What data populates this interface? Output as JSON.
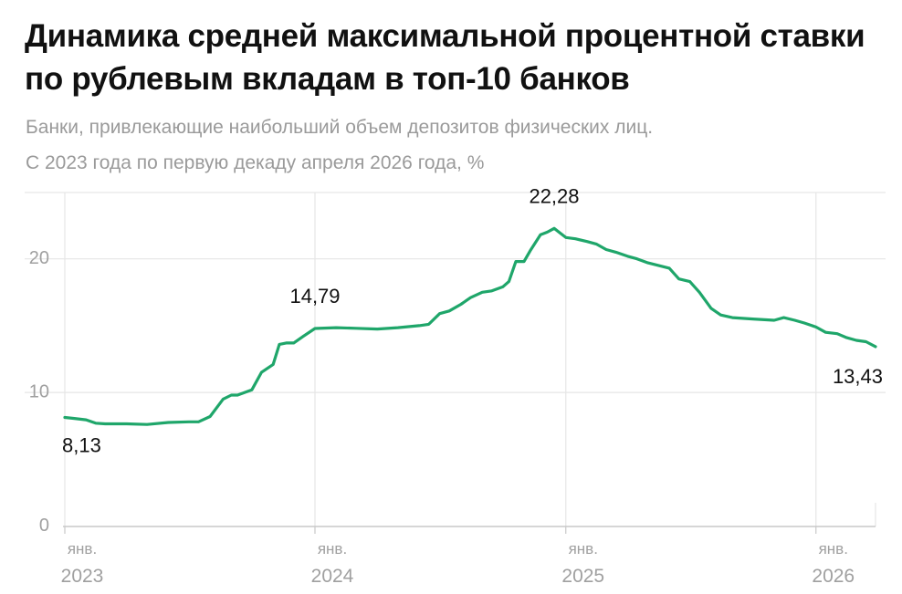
{
  "chart_data": {
    "type": "line",
    "title": "Динамика средней максимальной процентной ставки по рублевым вкладам в топ-10 банков",
    "subtitle": [
      "Банки, привлекающие наибольший объем депозитов физических лиц.",
      "С 2023 года по первую декаду апреля 2026 года, %"
    ],
    "xlabel": "",
    "ylabel": "",
    "ylim": [
      0,
      25
    ],
    "yticks": [
      "0",
      "10",
      "20"
    ],
    "yticks_values": [
      0,
      10,
      20
    ],
    "xlim": [
      "2023-01-01",
      "2026-04-10"
    ],
    "xticks": [
      {
        "date": "2023-01-01",
        "label_top": "янв.",
        "label_bottom": "2023"
      },
      {
        "date": "2024-01-01",
        "label_top": "янв.",
        "label_bottom": "2024"
      },
      {
        "date": "2025-01-01",
        "label_top": "янв.",
        "label_bottom": "2025"
      },
      {
        "date": "2026-01-01",
        "label_top": "янв.",
        "label_bottom": "2026"
      }
    ],
    "grid": true,
    "line_color": "#1fa66a",
    "series": [
      {
        "x": [
          "2023-01-01",
          "2023-01-15",
          "2023-02-01",
          "2023-02-15",
          "2023-03-01",
          "2023-04-01",
          "2023-05-01",
          "2023-06-01",
          "2023-07-01",
          "2023-07-15",
          "2023-08-01",
          "2023-08-20",
          "2023-09-01",
          "2023-09-10",
          "2023-10-01",
          "2023-10-15",
          "2023-11-01",
          "2023-11-10",
          "2023-11-20",
          "2023-12-01",
          "2023-12-15",
          "2024-01-01",
          "2024-02-01",
          "2024-03-01",
          "2024-04-01",
          "2024-05-01",
          "2024-06-01",
          "2024-06-15",
          "2024-07-01",
          "2024-07-15",
          "2024-08-01",
          "2024-08-15",
          "2024-09-01",
          "2024-09-15",
          "2024-10-01",
          "2024-10-10",
          "2024-10-20",
          "2024-11-01",
          "2024-11-10",
          "2024-11-25",
          "2024-12-05",
          "2024-12-15",
          "2025-01-01",
          "2025-01-15",
          "2025-02-01",
          "2025-02-15",
          "2025-03-01",
          "2025-03-15",
          "2025-04-01",
          "2025-04-15",
          "2025-05-01",
          "2025-06-01",
          "2025-06-15",
          "2025-07-01",
          "2025-07-15",
          "2025-08-01",
          "2025-08-15",
          "2025-09-01",
          "2025-10-01",
          "2025-11-01",
          "2025-11-15",
          "2025-12-01",
          "2025-12-15",
          "2026-01-01",
          "2026-01-15",
          "2026-02-01",
          "2026-02-15",
          "2026-03-01",
          "2026-03-15",
          "2026-04-10"
        ],
        "values": [
          8.13,
          8.05,
          7.95,
          7.7,
          7.65,
          7.65,
          7.6,
          7.75,
          7.8,
          7.8,
          8.2,
          9.5,
          9.8,
          9.8,
          10.2,
          11.5,
          12.1,
          13.6,
          13.7,
          13.7,
          14.2,
          14.79,
          14.85,
          14.8,
          14.75,
          14.85,
          15.0,
          15.1,
          15.9,
          16.1,
          16.6,
          17.1,
          17.5,
          17.6,
          17.9,
          18.3,
          19.8,
          19.8,
          20.6,
          21.8,
          22.0,
          22.28,
          21.6,
          21.5,
          21.3,
          21.1,
          20.7,
          20.5,
          20.2,
          20.0,
          19.7,
          19.3,
          18.5,
          18.3,
          17.5,
          16.3,
          15.8,
          15.6,
          15.5,
          15.4,
          15.6,
          15.4,
          15.2,
          14.9,
          14.5,
          14.4,
          14.1,
          13.9,
          13.8,
          13.43
        ]
      }
    ],
    "annotations": [
      {
        "date": "2023-01-01",
        "value": 8.13,
        "label": "8,13"
      },
      {
        "date": "2024-01-01",
        "value": 14.79,
        "label": "14,79"
      },
      {
        "date": "2024-12-15",
        "value": 22.28,
        "label": "22,28"
      },
      {
        "date": "2026-04-10",
        "value": 13.43,
        "label": "13,43"
      }
    ]
  }
}
